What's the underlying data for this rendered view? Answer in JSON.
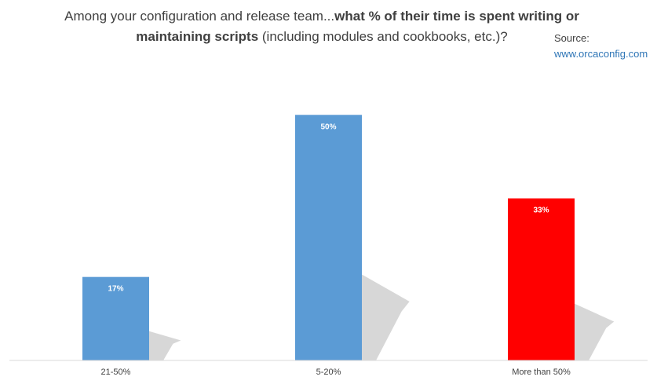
{
  "title": {
    "part1": "Among your configuration and release team...",
    "bold1": "what % of their time is spent writing or",
    "bold2": "maintaining scripts",
    "part2": " (including modules and cookbooks, etc.)?"
  },
  "source": {
    "label": "Source:",
    "url": "www.orcaconfig.com"
  },
  "colors": {
    "blue": "#5b9bd5",
    "red": "#ff0000",
    "shadow": "#d0d0d0",
    "axis": "#d9d9d9"
  },
  "chart_data": {
    "type": "bar",
    "categories": [
      "21-50%",
      "5-20%",
      "More than 50%"
    ],
    "values": [
      17,
      50,
      33
    ],
    "value_labels": [
      "17%",
      "50%",
      "33%"
    ],
    "bar_colors": [
      "#5b9bd5",
      "#5b9bd5",
      "#ff0000"
    ],
    "ylim": [
      0,
      55
    ],
    "grid": false,
    "legend": "none"
  }
}
